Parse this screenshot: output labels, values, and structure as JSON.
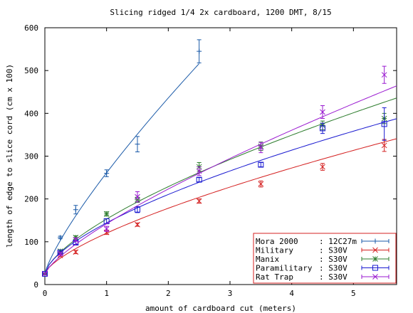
{
  "chart_data": {
    "type": "line",
    "title": "Slicing ridged 1/4 2x cardboard, 1200 DMT, 8/15",
    "xlabel": "amount of cardboard cut (meters)",
    "ylabel": "length of edge to slice cord (cm x 100)",
    "xlim": [
      0,
      5.7
    ],
    "ylim": [
      0,
      600
    ],
    "xticks": [
      0,
      1,
      2,
      3,
      4,
      5
    ],
    "yticks": [
      0,
      100,
      200,
      300,
      400,
      500,
      600
    ],
    "grid": false,
    "legend_position": "bottom-right",
    "series": [
      {
        "name": "Mora 2000",
        "steel": "12C27m",
        "color": "#1a5aa8",
        "marker": "plus",
        "points": [
          {
            "x": 0,
            "y": 25,
            "err": 2
          },
          {
            "x": 0.25,
            "y": 110,
            "err": 3
          },
          {
            "x": 0.5,
            "y": 175,
            "err": 10
          },
          {
            "x": 1.0,
            "y": 260,
            "err": 8
          },
          {
            "x": 1.5,
            "y": 328,
            "err": 18
          },
          {
            "x": 2.5,
            "y": 545,
            "err": 27
          }
        ],
        "fit": {
          "a": 25,
          "b": 236,
          "p": 0.8,
          "xmax": 2.5
        }
      },
      {
        "name": "Military",
        "steel": "S30V",
        "color": "#d42020",
        "marker": "x",
        "points": [
          {
            "x": 0,
            "y": 25,
            "err": 2
          },
          {
            "x": 0.25,
            "y": 68,
            "err": 3
          },
          {
            "x": 0.5,
            "y": 76,
            "err": 4
          },
          {
            "x": 1.0,
            "y": 122,
            "err": 5
          },
          {
            "x": 1.5,
            "y": 140,
            "err": 4
          },
          {
            "x": 2.5,
            "y": 195,
            "err": 5
          },
          {
            "x": 3.5,
            "y": 235,
            "err": 7
          },
          {
            "x": 4.5,
            "y": 275,
            "err": 8
          },
          {
            "x": 5.5,
            "y": 325,
            "err": 14
          }
        ],
        "fit": {
          "a": 25,
          "b": 95,
          "p": 0.69,
          "xmax": 5.7
        }
      },
      {
        "name": "Manix",
        "steel": "S30V",
        "color": "#2e7d2e",
        "marker": "star",
        "points": [
          {
            "x": 0,
            "y": 25,
            "err": 2
          },
          {
            "x": 0.25,
            "y": 78,
            "err": 3
          },
          {
            "x": 0.5,
            "y": 110,
            "err": 4
          },
          {
            "x": 1.0,
            "y": 165,
            "err": 5
          },
          {
            "x": 1.5,
            "y": 198,
            "err": 6
          },
          {
            "x": 2.5,
            "y": 275,
            "err": 10
          },
          {
            "x": 3.5,
            "y": 323,
            "err": 10
          },
          {
            "x": 4.5,
            "y": 372,
            "err": 10
          },
          {
            "x": 5.5,
            "y": 388,
            "err": 12
          }
        ],
        "fit": {
          "a": 25,
          "b": 128,
          "p": 0.67,
          "xmax": 5.7
        }
      },
      {
        "name": "Paramilitary",
        "steel": "S30V",
        "color": "#1a1ad0",
        "marker": "square",
        "points": [
          {
            "x": 0,
            "y": 25,
            "err": 2
          },
          {
            "x": 0.25,
            "y": 75,
            "err": 3
          },
          {
            "x": 0.5,
            "y": 98,
            "err": 4
          },
          {
            "x": 1.0,
            "y": 148,
            "err": 6
          },
          {
            "x": 1.5,
            "y": 175,
            "err": 7
          },
          {
            "x": 2.5,
            "y": 245,
            "err": 5
          },
          {
            "x": 3.5,
            "y": 280,
            "err": 5
          },
          {
            "x": 4.5,
            "y": 365,
            "err": 12
          },
          {
            "x": 5.5,
            "y": 375,
            "err": 38
          }
        ],
        "fit": {
          "a": 25,
          "b": 119,
          "p": 0.64,
          "xmax": 5.7
        }
      },
      {
        "name": "Rat Trap",
        "steel": "S30V",
        "color": "#9a1ad0",
        "marker": "x",
        "points": [
          {
            "x": 0,
            "y": 25,
            "err": 2
          },
          {
            "x": 0.25,
            "y": 72,
            "err": 3
          },
          {
            "x": 0.5,
            "y": 105,
            "err": 4
          },
          {
            "x": 1.0,
            "y": 130,
            "err": 6
          },
          {
            "x": 1.5,
            "y": 205,
            "err": 12
          },
          {
            "x": 2.5,
            "y": 265,
            "err": 10
          },
          {
            "x": 3.5,
            "y": 320,
            "err": 12
          },
          {
            "x": 4.5,
            "y": 403,
            "err": 15
          },
          {
            "x": 5.5,
            "y": 490,
            "err": 20
          }
        ],
        "fit": {
          "a": 25,
          "b": 117,
          "p": 0.76,
          "xmax": 5.7
        }
      }
    ]
  }
}
